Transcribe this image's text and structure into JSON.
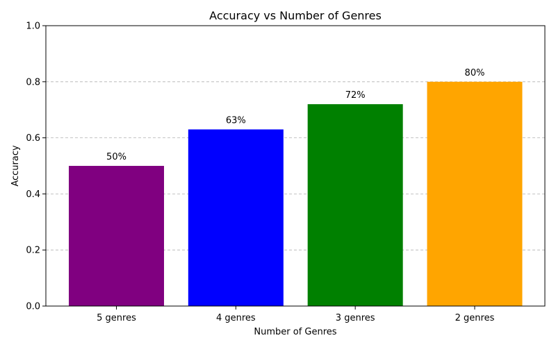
{
  "chart_data": {
    "type": "bar",
    "title": "Accuracy vs Number of Genres",
    "xlabel": "Number of Genres",
    "ylabel": "Accuracy",
    "categories": [
      "5 genres",
      "4 genres",
      "3 genres",
      "2 genres"
    ],
    "values": [
      0.5,
      0.63,
      0.72,
      0.8
    ],
    "data_labels": [
      "50%",
      "63%",
      "72%",
      "80%"
    ],
    "colors": [
      "#800080",
      "#0000ff",
      "#008000",
      "#ffa500"
    ],
    "ylim": [
      0,
      1.0
    ],
    "yticks": [
      0.0,
      0.2,
      0.4,
      0.6,
      0.8,
      1.0
    ],
    "ytick_labels": [
      "0.0",
      "0.2",
      "0.4",
      "0.6",
      "0.8",
      "1.0"
    ],
    "grid": "y-axis, dashed",
    "legend": "none"
  }
}
